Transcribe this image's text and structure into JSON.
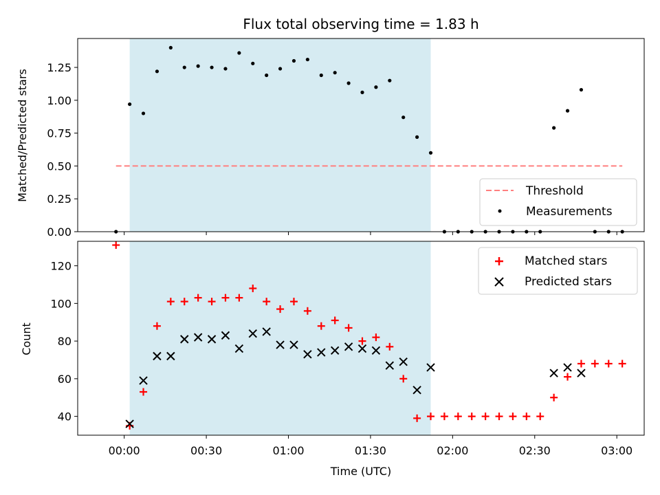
{
  "figure": {
    "title": "Flux total observing time = 1.83 h",
    "xlabel": "Time (UTC)"
  },
  "chart_data": [
    {
      "type": "scatter",
      "title": "Flux total observing time = 1.83 h",
      "xlabel": "",
      "ylabel": "Matched/Predicted stars",
      "xlim": [
        "23:43",
        "03:10"
      ],
      "ylim": [
        0,
        1.47
      ],
      "yticks": [
        "0.00",
        "0.25",
        "0.50",
        "0.75",
        "1.00",
        "1.25"
      ],
      "grid": false,
      "legend": "lower-right",
      "shaded_region": {
        "x": [
          "00:02",
          "01:52"
        ],
        "color": "#add8e6"
      },
      "threshold": {
        "name": "Threshold",
        "value": 0.5,
        "x": [
          "23:57",
          "03:02"
        ],
        "color": "#ff7f7f"
      },
      "series": [
        {
          "name": "Measurements",
          "color": "#000000",
          "marker": "dot",
          "x": [
            "23:57",
            "00:02",
            "00:07",
            "00:12",
            "00:17",
            "00:22",
            "00:27",
            "00:32",
            "00:37",
            "00:42",
            "00:47",
            "00:52",
            "00:57",
            "01:02",
            "01:07",
            "01:12",
            "01:17",
            "01:22",
            "01:27",
            "01:32",
            "01:37",
            "01:42",
            "01:47",
            "01:52",
            "01:57",
            "02:02",
            "02:07",
            "02:12",
            "02:17",
            "02:22",
            "02:27",
            "02:32",
            "02:37",
            "02:42",
            "02:47",
            "02:52",
            "02:57",
            "03:02"
          ],
          "y": [
            0,
            0.97,
            0.9,
            1.22,
            1.4,
            1.25,
            1.26,
            1.25,
            1.24,
            1.36,
            1.28,
            1.19,
            1.24,
            1.3,
            1.31,
            1.19,
            1.21,
            1.13,
            1.06,
            1.1,
            1.15,
            0.87,
            0.72,
            0.6,
            0,
            0,
            0,
            0,
            0,
            0,
            0,
            0,
            0.79,
            0.92,
            1.08,
            0,
            0,
            0
          ]
        }
      ]
    },
    {
      "type": "scatter",
      "title": "",
      "xlabel": "Time (UTC)",
      "ylabel": "Count",
      "xlim": [
        "23:43",
        "03:10"
      ],
      "ylim": [
        30,
        133
      ],
      "xticks": [
        "00:00",
        "00:30",
        "01:00",
        "01:30",
        "02:00",
        "02:30",
        "03:00"
      ],
      "yticks": [
        "40",
        "60",
        "80",
        "100",
        "120"
      ],
      "grid": false,
      "legend": "top-right",
      "shaded_region": {
        "x": [
          "00:02",
          "01:52"
        ],
        "color": "#add8e6"
      },
      "series": [
        {
          "name": "Matched stars",
          "color": "#ff0000",
          "marker": "plus",
          "x": [
            "23:57",
            "00:02",
            "00:07",
            "00:12",
            "00:17",
            "00:22",
            "00:27",
            "00:32",
            "00:37",
            "00:42",
            "00:47",
            "00:52",
            "00:57",
            "01:02",
            "01:07",
            "01:12",
            "01:17",
            "01:22",
            "01:27",
            "01:32",
            "01:37",
            "01:42",
            "01:47",
            "01:52",
            "01:57",
            "02:02",
            "02:07",
            "02:12",
            "02:17",
            "02:22",
            "02:27",
            "02:32",
            "02:37",
            "02:42",
            "02:47",
            "02:52",
            "02:57",
            "03:02"
          ],
          "y": [
            131,
            35,
            53,
            88,
            101,
            101,
            103,
            101,
            103,
            103,
            108,
            101,
            97,
            101,
            96,
            88,
            91,
            87,
            80,
            82,
            77,
            60,
            39,
            40,
            40,
            40,
            40,
            40,
            40,
            40,
            40,
            40,
            50,
            61,
            68,
            68,
            68,
            68
          ]
        },
        {
          "name": "Predicted stars",
          "color": "#000000",
          "marker": "x",
          "x": [
            "00:02",
            "00:07",
            "00:12",
            "00:17",
            "00:22",
            "00:27",
            "00:32",
            "00:37",
            "00:42",
            "00:47",
            "00:52",
            "00:57",
            "01:02",
            "01:07",
            "01:12",
            "01:17",
            "01:22",
            "01:27",
            "01:32",
            "01:37",
            "01:42",
            "01:47",
            "01:52",
            "02:37",
            "02:42",
            "02:47"
          ],
          "y": [
            36,
            59,
            72,
            72,
            81,
            82,
            81,
            83,
            76,
            84,
            85,
            78,
            78,
            73,
            74,
            75,
            77,
            76,
            75,
            67,
            69,
            54,
            66,
            63,
            66,
            63
          ]
        }
      ]
    }
  ]
}
